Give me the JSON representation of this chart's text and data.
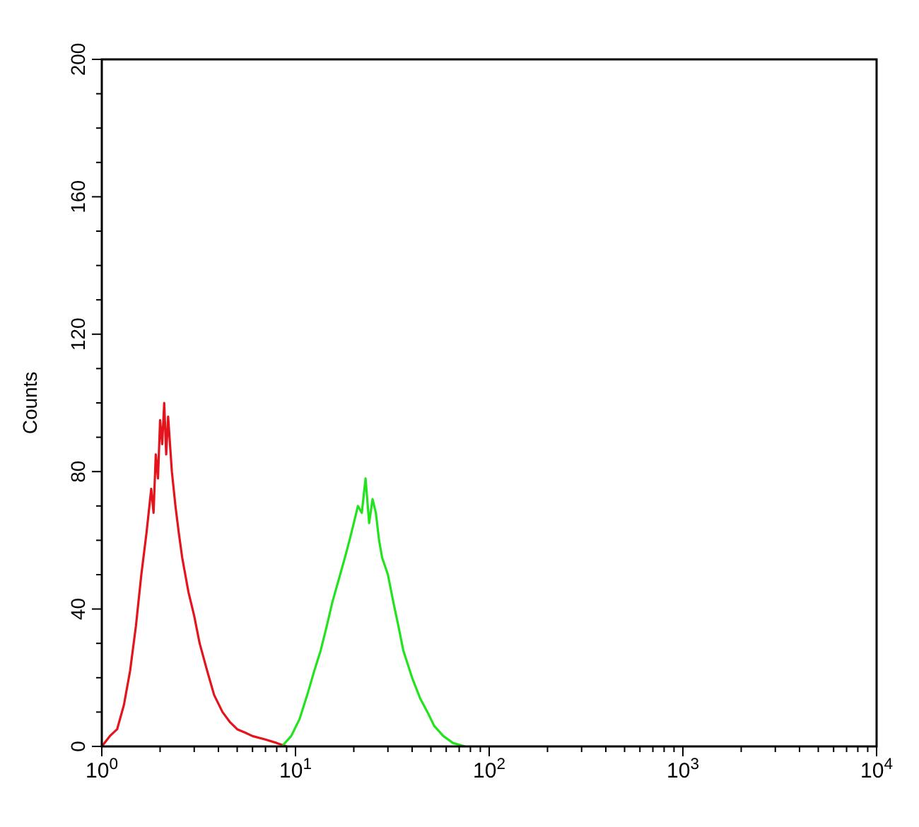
{
  "chart_data": {
    "type": "line",
    "ylabel": "Counts",
    "log": "x",
    "xlim": [
      1,
      10000
    ],
    "ylim": [
      0,
      200
    ],
    "xticks": [
      {
        "value": 1,
        "label": "10$^{0}$"
      },
      {
        "value": 2,
        "label": null
      },
      {
        "value": 3,
        "label": null
      },
      {
        "value": 4,
        "label": null
      },
      {
        "value": 5,
        "label": null
      },
      {
        "value": 6,
        "label": null
      },
      {
        "value": 7,
        "label": null
      },
      {
        "value": 8,
        "label": null
      },
      {
        "value": 9,
        "label": null
      },
      {
        "value": 10,
        "label": "10$^{1}$"
      },
      {
        "value": 20,
        "label": null
      },
      {
        "value": 30,
        "label": null
      },
      {
        "value": 40,
        "label": null
      },
      {
        "value": 50,
        "label": null
      },
      {
        "value": 60,
        "label": null
      },
      {
        "value": 70,
        "label": null
      },
      {
        "value": 80,
        "label": null
      },
      {
        "value": 90,
        "label": null
      },
      {
        "value": 100,
        "label": "10$^{2}$"
      },
      {
        "value": 200,
        "label": null
      },
      {
        "value": 300,
        "label": null
      },
      {
        "value": 400,
        "label": null
      },
      {
        "value": 500,
        "label": null
      },
      {
        "value": 600,
        "label": null
      },
      {
        "value": 700,
        "label": null
      },
      {
        "value": 800,
        "label": null
      },
      {
        "value": 900,
        "label": null
      },
      {
        "value": 1000,
        "label": "10$^{3}$"
      },
      {
        "value": 2000,
        "label": null
      },
      {
        "value": 3000,
        "label": null
      },
      {
        "value": 4000,
        "label": null
      },
      {
        "value": 5000,
        "label": null
      },
      {
        "value": 6000,
        "label": null
      },
      {
        "value": 7000,
        "label": null
      },
      {
        "value": 8000,
        "label": null
      },
      {
        "value": 9000,
        "label": null
      },
      {
        "value": 10000,
        "label": "10$^{4}$"
      }
    ],
    "yticks": [
      0,
      {
        "value": 10,
        "label": null
      },
      {
        "value": 20,
        "label": null
      },
      {
        "value": 30,
        "label": null
      },
      40,
      {
        "value": 50,
        "label": null
      },
      {
        "value": 60,
        "label": null
      },
      {
        "value": 70,
        "label": null
      },
      80,
      {
        "value": 90,
        "label": null
      },
      {
        "value": 100,
        "label": null
      },
      {
        "value": 110,
        "label": null
      },
      120,
      {
        "value": 130,
        "label": null
      },
      {
        "value": 140,
        "label": null
      },
      {
        "value": 150,
        "label": null
      },
      160,
      {
        "value": 170,
        "label": null
      },
      {
        "value": 180,
        "label": null
      },
      {
        "value": 190,
        "label": null
      },
      200
    ],
    "grid": false,
    "series": [
      {
        "color": "#e3141c",
        "x": [
          1.0,
          1.1,
          1.2,
          1.3,
          1.4,
          1.5,
          1.6,
          1.7,
          1.8,
          1.85,
          1.9,
          1.95,
          2.0,
          2.05,
          2.1,
          2.15,
          2.2,
          2.3,
          2.4,
          2.5,
          2.6,
          2.8,
          3.0,
          3.2,
          3.5,
          3.8,
          4.2,
          4.6,
          5.0,
          5.5,
          6.0,
          7.0,
          8.0,
          9.0
        ],
        "values": [
          0,
          3,
          5,
          12,
          22,
          35,
          50,
          62,
          75,
          68,
          85,
          78,
          95,
          88,
          100,
          85,
          96,
          80,
          70,
          62,
          55,
          45,
          38,
          30,
          22,
          15,
          10,
          7,
          5,
          4,
          3,
          2,
          1,
          0
        ]
      },
      {
        "color": "#22e31e",
        "x": [
          8.5,
          9.5,
          10.5,
          11.5,
          12.5,
          13.5,
          14.5,
          15.5,
          17,
          18,
          19,
          20,
          21,
          22,
          23,
          24,
          25,
          26,
          27,
          28,
          30,
          32,
          34,
          36,
          40,
          44,
          48,
          52,
          58,
          65,
          75
        ],
        "values": [
          0,
          3,
          8,
          15,
          22,
          28,
          35,
          42,
          50,
          55,
          60,
          65,
          70,
          68,
          78,
          65,
          72,
          68,
          60,
          55,
          50,
          42,
          35,
          28,
          20,
          14,
          10,
          6,
          3,
          1,
          0
        ]
      }
    ]
  }
}
